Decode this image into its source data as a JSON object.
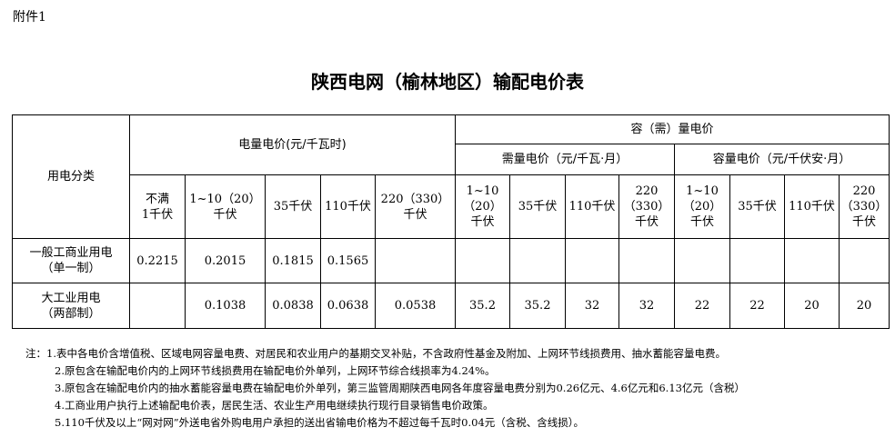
{
  "attachment": "附件1",
  "title": "陕西电网（榆林地区）输配电价表",
  "header": {
    "category": "用电分类",
    "energy_price": "电量电价(元/千瓦时)",
    "capacity_group": "容（需）量电价",
    "demand_price": "需量电价（元/千瓦·月）",
    "capacity_price": "容量电价（元/千伏安·月）",
    "energy_cols": [
      "不满\n1千伏",
      "1~10（20）\n千伏",
      "35千伏",
      "110千伏",
      "220（330）\n千伏"
    ],
    "demand_cols": [
      "1~10\n（20）\n千伏",
      "35千伏",
      "110千伏",
      "220\n（330）\n千伏"
    ],
    "capacity_cols": [
      "1~10\n（20）\n千伏",
      "35千伏",
      "110千伏",
      "220\n（330）\n千伏"
    ]
  },
  "rows": [
    {
      "category": "一般工商业用电\n（单一制）",
      "values": [
        "0.2215",
        "0.2015",
        "0.1815",
        "0.1565",
        "",
        "",
        "",
        "",
        "",
        "",
        "",
        "",
        ""
      ]
    },
    {
      "category": "大工业用电\n（两部制）",
      "values": [
        "",
        "0.1038",
        "0.0838",
        "0.0638",
        "0.0538",
        "35.2",
        "35.2",
        "32",
        "32",
        "22",
        "22",
        "20",
        "20"
      ]
    }
  ],
  "notes": [
    "注：1.表中各电价含增值税、区域电网容量电费、对居民和农业用户的基期交叉补贴，不含政府性基金及附加、上网环节线损费用、抽水蓄能容量电费。",
    "2.原包含在输配电价内的上网环节线损费用在输配电价外单列，上网环节综合线损率为4.24%。",
    "3.原包含在输配电价内的抽水蓄能容量电费在输配电价外单列，第三监管周期陕西电网各年度容量电费分别为0.26亿元、4.6亿元和6.13亿元（含税）",
    "4.工商业用户执行上述输配电价表，居民生活、农业生产用电继续执行现行目录销售电价政策。",
    "5.110千伏及以上“网对网”外送电省外购电用户承担的送出省输电价格为不超过每千瓦时0.04元（含税、含线损）。"
  ]
}
